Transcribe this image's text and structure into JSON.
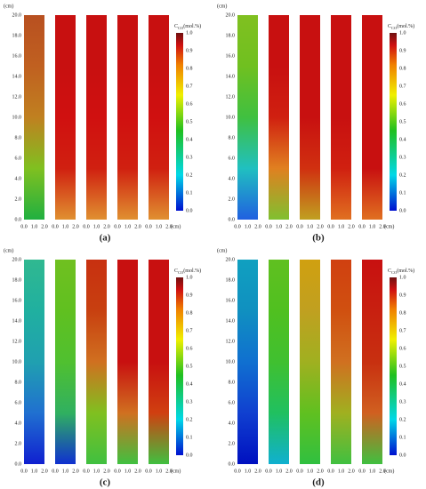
{
  "length_unit": "(cm)",
  "yticks": [
    "0.0",
    "2.0",
    "4.0",
    "6.0",
    "8.0",
    "10.0",
    "12.0",
    "14.0",
    "16.0",
    "18.0",
    "20.0"
  ],
  "xticks": [
    "0.0",
    "1.0",
    "2.0"
  ],
  "colorbar": {
    "symbol": "C",
    "subscript": "CO",
    "unit": "(mol.%)",
    "ticks": [
      "0.0",
      "0.1",
      "0.2",
      "0.3",
      "0.4",
      "0.5",
      "0.6",
      "0.7",
      "0.8",
      "0.9",
      "1.0"
    ]
  },
  "panels": [
    {
      "label": "(a)"
    },
    {
      "label": "(b)"
    },
    {
      "label": "(c)"
    },
    {
      "label": "(d)"
    }
  ]
}
